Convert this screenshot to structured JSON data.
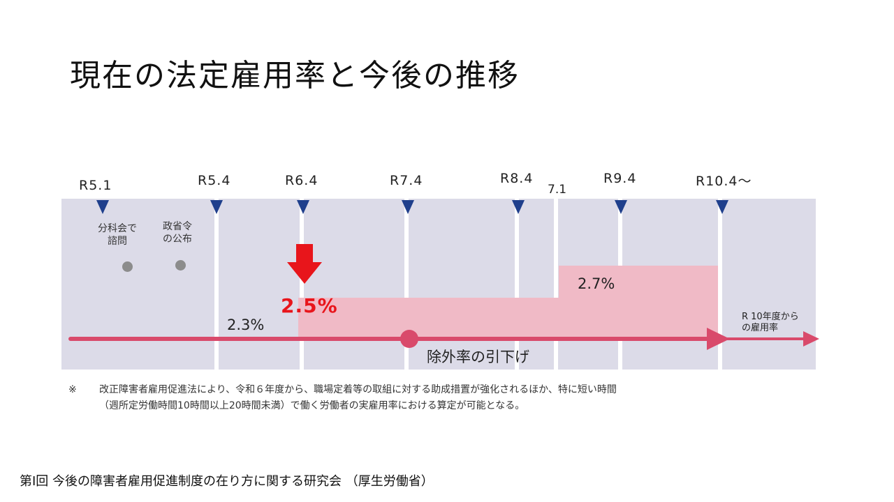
{
  "slide": {
    "title": "現在の法定雇用率と今後の推移",
    "source": "第Ⅰ回 今後の障害者雇用促進制度の在り方に関する研究会 （厚生労働省）"
  },
  "timeline": {
    "dates": [
      "R5.1",
      "R5.4",
      "R6.4",
      "R7.4",
      "R8.4",
      "7.1",
      "R9.4",
      "R10.4～"
    ],
    "events": [
      {
        "label_line1": "分科会で",
        "label_line2": "諮問"
      },
      {
        "label_line1": "政省令",
        "label_line2": "の公布"
      }
    ],
    "rates": {
      "current": "2.3%",
      "r6": "2.5%",
      "r8": "2.7%"
    },
    "after_label_line1": "R 10年度から",
    "after_label_line2": "の雇用率",
    "exclusion_label": "除外率の引下げ"
  },
  "footnote": {
    "mark": "※",
    "line1": "改正障害者雇用促進法により、令和６年度から、職場定着等の取組に対する助成措置が強化されるほか、特に短い時間",
    "line2": "（週所定労働時間10時間以上20時間未満）で働く労働者の実雇用率における算定が可能となる。"
  },
  "colors": {
    "panel_bg": "#dcdbe8",
    "pink_fill": "#f0bac6",
    "arrow": "#d94a6b",
    "marker": "#1f3f8c",
    "highlight": "#e8151b"
  }
}
